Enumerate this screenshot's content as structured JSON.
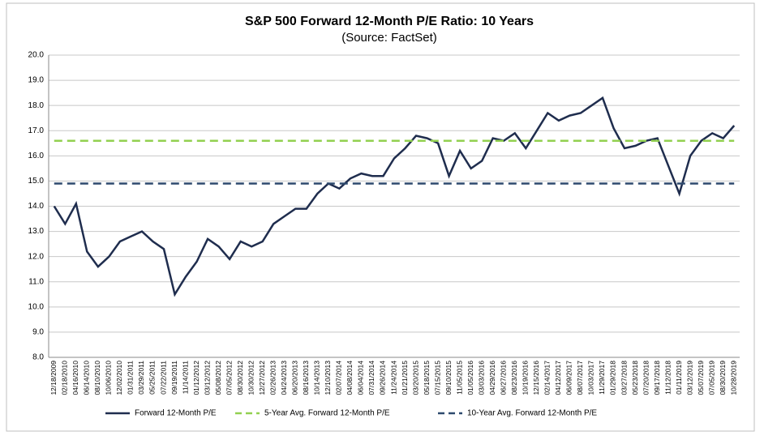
{
  "chart_data": {
    "type": "line",
    "title": "S&P 500 Forward 12-Month P/E Ratio: 10 Years",
    "subtitle": "(Source: FactSet)",
    "categories": [
      "12/18/2009",
      "02/18/2010",
      "04/16/2010",
      "06/14/2010",
      "08/10/2010",
      "10/06/2010",
      "12/02/2010",
      "01/31/2011",
      "03/29/2011",
      "05/25/2011",
      "07/22/2011",
      "09/19/2011",
      "11/14/2011",
      "01/12/2012",
      "03/12/2012",
      "05/08/2012",
      "07/05/2012",
      "08/30/2012",
      "10/30/2012",
      "12/27/2012",
      "02/26/2013",
      "04/24/2013",
      "06/20/2013",
      "08/16/2013",
      "10/14/2013",
      "12/10/2013",
      "02/07/2014",
      "04/08/2014",
      "06/04/2014",
      "07/31/2014",
      "09/26/2014",
      "11/24/2014",
      "01/21/2015",
      "03/20/2015",
      "05/18/2015",
      "07/15/2015",
      "09/10/2015",
      "11/05/2015",
      "01/05/2016",
      "03/03/2016",
      "04/29/2016",
      "06/27/2016",
      "08/23/2016",
      "10/19/2016",
      "12/15/2016",
      "02/14/2017",
      "04/12/2017",
      "06/09/2017",
      "08/07/2017",
      "10/03/2017",
      "11/29/2017",
      "01/29/2018",
      "03/27/2018",
      "05/23/2018",
      "07/20/2018",
      "09/17/2018",
      "11/12/2018",
      "01/11/2019",
      "03/12/2019",
      "05/07/2019",
      "07/05/2019",
      "08/30/2019",
      "10/28/2019"
    ],
    "series": [
      {
        "name": "Forward 12-Month P/E",
        "color": "#1f2d4e",
        "dash": false,
        "values": [
          14.0,
          13.3,
          14.1,
          12.2,
          11.6,
          12.0,
          12.6,
          12.8,
          13.0,
          12.6,
          12.3,
          10.5,
          11.2,
          11.8,
          12.7,
          12.4,
          11.9,
          12.6,
          12.4,
          12.6,
          13.3,
          13.6,
          13.9,
          13.9,
          14.5,
          14.9,
          14.7,
          15.1,
          15.3,
          15.2,
          15.2,
          15.9,
          16.3,
          16.8,
          16.7,
          16.5,
          15.2,
          16.2,
          15.5,
          15.8,
          16.7,
          16.6,
          16.9,
          16.3,
          17.0,
          17.7,
          17.4,
          17.6,
          17.7,
          18.0,
          18.3,
          17.1,
          16.3,
          16.4,
          16.6,
          16.7,
          15.6,
          14.5,
          16.0,
          16.6,
          16.9,
          16.7,
          17.2
        ]
      },
      {
        "name": "5-Year Avg. Forward 12-Month P/E",
        "color": "#92d050",
        "dash": true,
        "values": [
          16.6,
          16.6,
          16.6,
          16.6,
          16.6,
          16.6,
          16.6,
          16.6,
          16.6,
          16.6,
          16.6,
          16.6,
          16.6,
          16.6,
          16.6,
          16.6,
          16.6,
          16.6,
          16.6,
          16.6,
          16.6,
          16.6,
          16.6,
          16.6,
          16.6,
          16.6,
          16.6,
          16.6,
          16.6,
          16.6,
          16.6,
          16.6,
          16.6,
          16.6,
          16.6,
          16.6,
          16.6,
          16.6,
          16.6,
          16.6,
          16.6,
          16.6,
          16.6,
          16.6,
          16.6,
          16.6,
          16.6,
          16.6,
          16.6,
          16.6,
          16.6,
          16.6,
          16.6,
          16.6,
          16.6,
          16.6,
          16.6,
          16.6,
          16.6,
          16.6,
          16.6,
          16.6,
          16.6
        ]
      },
      {
        "name": "10-Year Avg. Forward 12-Month P/E",
        "color": "#2e4a6e",
        "dash": true,
        "values": [
          14.9,
          14.9,
          14.9,
          14.9,
          14.9,
          14.9,
          14.9,
          14.9,
          14.9,
          14.9,
          14.9,
          14.9,
          14.9,
          14.9,
          14.9,
          14.9,
          14.9,
          14.9,
          14.9,
          14.9,
          14.9,
          14.9,
          14.9,
          14.9,
          14.9,
          14.9,
          14.9,
          14.9,
          14.9,
          14.9,
          14.9,
          14.9,
          14.9,
          14.9,
          14.9,
          14.9,
          14.9,
          14.9,
          14.9,
          14.9,
          14.9,
          14.9,
          14.9,
          14.9,
          14.9,
          14.9,
          14.9,
          14.9,
          14.9,
          14.9,
          14.9,
          14.9,
          14.9,
          14.9,
          14.9,
          14.9,
          14.9,
          14.9,
          14.9,
          14.9,
          14.9,
          14.9,
          14.9
        ]
      }
    ],
    "ylim": [
      8,
      20
    ],
    "yticks": [
      {
        "value": 8,
        "label": "8.0"
      },
      {
        "value": 9,
        "label": "9.0"
      },
      {
        "value": 10,
        "label": "10.0"
      },
      {
        "value": 11,
        "label": "11.0"
      },
      {
        "value": 12,
        "label": "12.0"
      },
      {
        "value": 13,
        "label": "13.0"
      },
      {
        "value": 14,
        "label": "14.0"
      },
      {
        "value": 15,
        "label": "15.0"
      },
      {
        "value": 16,
        "label": "16.0"
      },
      {
        "value": 17,
        "label": "17.0"
      },
      {
        "value": 18,
        "label": "18.0"
      },
      {
        "value": 19,
        "label": "19.0"
      },
      {
        "value": 20,
        "label": "20.0"
      }
    ],
    "grid": true,
    "legend": "bottom"
  }
}
